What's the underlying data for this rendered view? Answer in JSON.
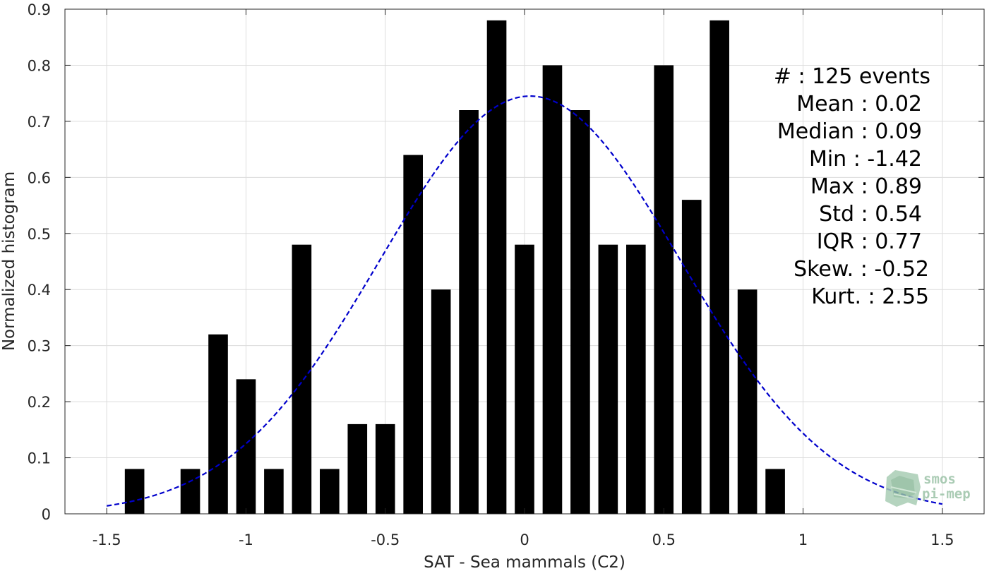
{
  "chart_data": {
    "type": "bar",
    "xlabel": "SAT - Sea mammals (C2)",
    "ylabel": "Normalized histogram",
    "xlim": [
      -1.65,
      1.65
    ],
    "ylim": [
      0,
      0.9
    ],
    "xticks": [
      "-1.5",
      "-1",
      "-0.5",
      "0",
      "0.5",
      "1",
      "1.5"
    ],
    "yticks": [
      "0",
      "0.1",
      "0.2",
      "0.3",
      "0.4",
      "0.5",
      "0.6",
      "0.7",
      "0.8",
      "0.9"
    ],
    "grid": true,
    "bar_width": 0.07,
    "x": [
      -1.4,
      -1.2,
      -1.1,
      -1.0,
      -0.9,
      -0.8,
      -0.7,
      -0.6,
      -0.5,
      -0.4,
      -0.3,
      -0.2,
      -0.1,
      0.0,
      0.1,
      0.2,
      0.3,
      0.4,
      0.5,
      0.6,
      0.7,
      0.8,
      0.9
    ],
    "values": [
      0.08,
      0.08,
      0.32,
      0.24,
      0.08,
      0.48,
      0.08,
      0.16,
      0.16,
      0.64,
      0.4,
      0.72,
      0.88,
      0.48,
      0.8,
      0.72,
      0.48,
      0.48,
      0.8,
      0.56,
      0.88,
      0.4,
      0.08
    ],
    "fit": {
      "type": "normal",
      "mean": 0.02,
      "std": 0.54,
      "x_range": [
        -1.5,
        1.5
      ],
      "style": "dashed",
      "color": "#0000cc"
    },
    "bar_color": "#000000",
    "stats": [
      "#  : 125 events",
      "Mean : 0.02",
      "Median : 0.09",
      "Min : -1.42",
      "Max : 0.89",
      "Std : 0.54",
      "IQR : 0.77",
      "Skew. : -0.52",
      "Kurt. : 2.55"
    ]
  },
  "logo": {
    "line1": "smos",
    "line2": "pi-mep"
  }
}
